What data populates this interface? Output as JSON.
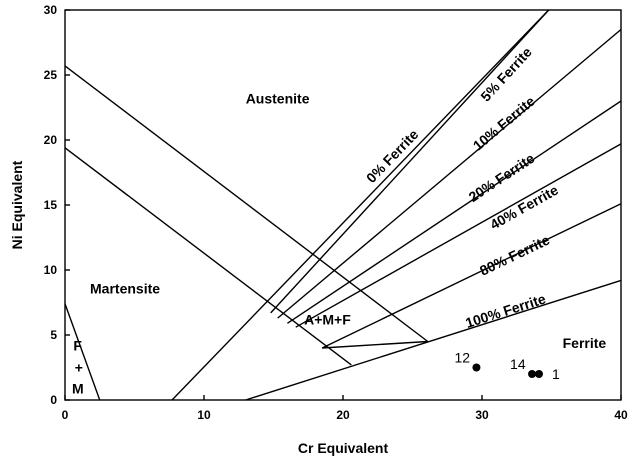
{
  "chart_data": {
    "type": "scatter",
    "xlabel": "Cr Equivalent",
    "ylabel": "Ni Equivalent",
    "xlim": [
      0,
      40
    ],
    "ylim": [
      0,
      30
    ],
    "xticks": [
      "0",
      "10",
      "20",
      "30",
      "40"
    ],
    "yticks": [
      "0",
      "5",
      "10",
      "15",
      "20",
      "25",
      "30"
    ],
    "grid": false,
    "points": [
      {
        "label": "12",
        "x": 29.6,
        "y": 2.5
      },
      {
        "label": "14",
        "x": 33.6,
        "y": 2.0
      },
      {
        "label": "1",
        "x": 34.1,
        "y": 2.0
      }
    ],
    "regions": [
      {
        "label": "Austenite",
        "x": 13,
        "y": 22.8
      },
      {
        "label": "Martensite",
        "x": 1.8,
        "y": 8.2
      },
      {
        "label": "A+M+F",
        "x": 17.2,
        "y": 5.8
      },
      {
        "label": "Ferrite",
        "x": 35.8,
        "y": 4.0
      },
      {
        "label": "F",
        "x": 0.6,
        "y": 3.8
      },
      {
        "label": "+",
        "x": 0.7,
        "y": 2.1
      },
      {
        "label": "M",
        "x": 0.5,
        "y": 0.5
      }
    ],
    "ferrite_lines": [
      {
        "label": "0% Ferrite",
        "x1": 7.7,
        "y1": 0,
        "x2": 34.8,
        "y2": 30,
        "lx": 23.8,
        "ly": 18.5
      },
      {
        "label": "5% Ferrite",
        "x1": 14.8,
        "y1": 6.7,
        "x2": 34.8,
        "y2": 30,
        "lx": 32.0,
        "ly": 24.8
      },
      {
        "label": "10% Ferrite",
        "x1": 15.3,
        "y1": 6.3,
        "x2": 40,
        "y2": 28.5,
        "lx": 31.8,
        "ly": 21.0
      },
      {
        "label": "20% Ferrite",
        "x1": 16.0,
        "y1": 5.9,
        "x2": 40,
        "y2": 23.0,
        "lx": 31.6,
        "ly": 16.8
      },
      {
        "label": "40% Ferrite",
        "x1": 16.6,
        "y1": 5.6,
        "x2": 40,
        "y2": 19.7,
        "lx": 33.2,
        "ly": 14.5
      },
      {
        "label": "80% Ferrite",
        "x1": 18.5,
        "y1": 4.0,
        "x2": 40,
        "y2": 15.1,
        "lx": 32.5,
        "ly": 10.8
      },
      {
        "label": "100% Ferrite",
        "x1": 13.0,
        "y1": 0,
        "x2": 40,
        "y2": 9.2,
        "lx": 31.8,
        "ly": 6.5
      }
    ],
    "boundary_lines": [
      {
        "x1": 0,
        "y1": 25.7,
        "x2": 26.1,
        "y2": 4.5
      },
      {
        "x1": 0,
        "y1": 19.4,
        "x2": 20.6,
        "y2": 2.7
      },
      {
        "x1": 0,
        "y1": 7.4,
        "x2": 2.5,
        "y2": 0
      },
      {
        "x1": 18.5,
        "y1": 4.0,
        "x2": 26.1,
        "y2": 4.5
      }
    ]
  }
}
